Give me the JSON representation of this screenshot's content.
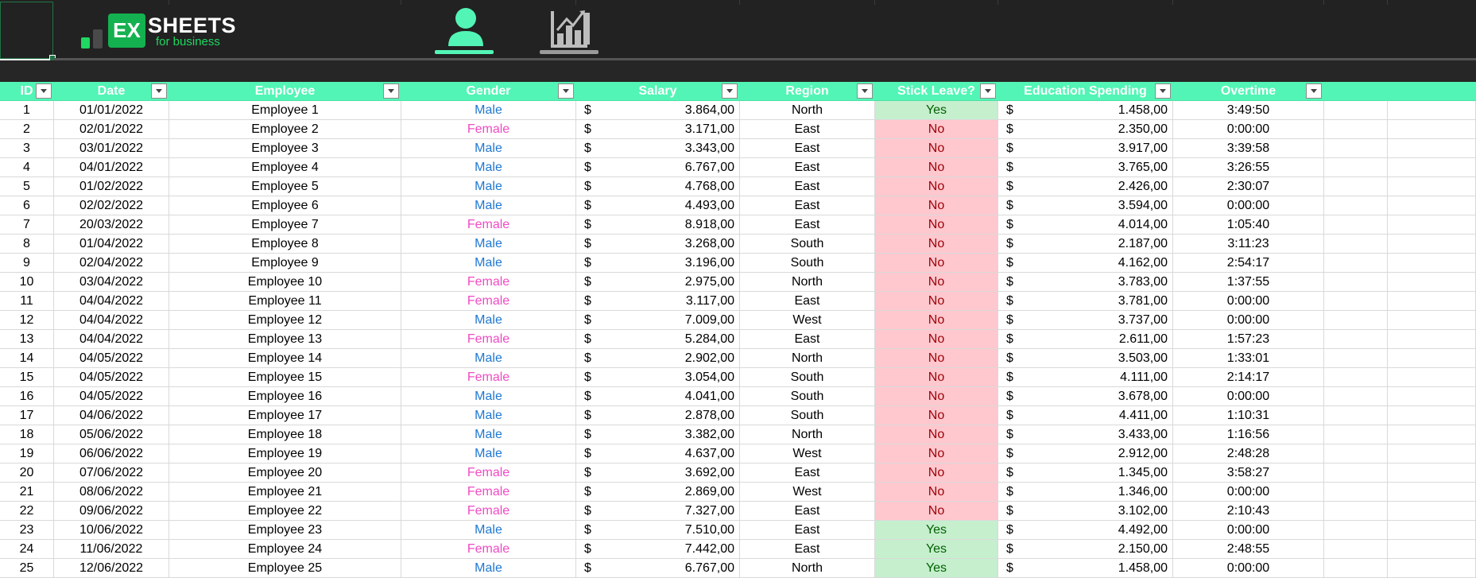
{
  "logo": {
    "badge": "EX",
    "title": "SHEETS",
    "subtitle": "for business"
  },
  "nav": [
    {
      "name": "employees",
      "icon": "person-icon",
      "active": true
    },
    {
      "name": "dashboard",
      "icon": "bar-chart-icon",
      "active": false
    }
  ],
  "colors": {
    "header": "#52f5b5",
    "male": "#1e78d2",
    "female": "#f04bc4",
    "yes_bg": "#c6efce",
    "no_bg": "#ffc7ce"
  },
  "table": {
    "currency": "$",
    "headers": [
      "ID",
      "Date",
      "Employee",
      "Gender",
      "Salary",
      "Region",
      "Stick Leave?",
      "Education Spending",
      "Overtime"
    ],
    "rows": [
      [
        "1",
        "01/01/2022",
        "Employee 1",
        "Male",
        "3.864,00",
        "North",
        "Yes",
        "1.458,00",
        "3:49:50"
      ],
      [
        "2",
        "02/01/2022",
        "Employee 2",
        "Female",
        "3.171,00",
        "East",
        "No",
        "2.350,00",
        "0:00:00"
      ],
      [
        "3",
        "03/01/2022",
        "Employee 3",
        "Male",
        "3.343,00",
        "East",
        "No",
        "3.917,00",
        "3:39:58"
      ],
      [
        "4",
        "04/01/2022",
        "Employee 4",
        "Male",
        "6.767,00",
        "East",
        "No",
        "3.765,00",
        "3:26:55"
      ],
      [
        "5",
        "01/02/2022",
        "Employee 5",
        "Male",
        "4.768,00",
        "East",
        "No",
        "2.426,00",
        "2:30:07"
      ],
      [
        "6",
        "02/02/2022",
        "Employee 6",
        "Male",
        "4.493,00",
        "East",
        "No",
        "3.594,00",
        "0:00:00"
      ],
      [
        "7",
        "20/03/2022",
        "Employee 7",
        "Female",
        "8.918,00",
        "East",
        "No",
        "4.014,00",
        "1:05:40"
      ],
      [
        "8",
        "01/04/2022",
        "Employee 8",
        "Male",
        "3.268,00",
        "South",
        "No",
        "2.187,00",
        "3:11:23"
      ],
      [
        "9",
        "02/04/2022",
        "Employee 9",
        "Male",
        "3.196,00",
        "South",
        "No",
        "4.162,00",
        "2:54:17"
      ],
      [
        "10",
        "03/04/2022",
        "Employee 10",
        "Female",
        "2.975,00",
        "North",
        "No",
        "3.783,00",
        "1:37:55"
      ],
      [
        "11",
        "04/04/2022",
        "Employee 11",
        "Female",
        "3.117,00",
        "East",
        "No",
        "3.781,00",
        "0:00:00"
      ],
      [
        "12",
        "04/04/2022",
        "Employee 12",
        "Male",
        "7.009,00",
        "West",
        "No",
        "3.737,00",
        "0:00:00"
      ],
      [
        "13",
        "04/04/2022",
        "Employee 13",
        "Female",
        "5.284,00",
        "East",
        "No",
        "2.611,00",
        "1:57:23"
      ],
      [
        "14",
        "04/05/2022",
        "Employee 14",
        "Male",
        "2.902,00",
        "North",
        "No",
        "3.503,00",
        "1:33:01"
      ],
      [
        "15",
        "04/05/2022",
        "Employee 15",
        "Female",
        "3.054,00",
        "South",
        "No",
        "4.111,00",
        "2:14:17"
      ],
      [
        "16",
        "04/05/2022",
        "Employee 16",
        "Male",
        "4.041,00",
        "South",
        "No",
        "3.678,00",
        "0:00:00"
      ],
      [
        "17",
        "04/06/2022",
        "Employee 17",
        "Male",
        "2.878,00",
        "South",
        "No",
        "4.411,00",
        "1:10:31"
      ],
      [
        "18",
        "05/06/2022",
        "Employee 18",
        "Male",
        "3.382,00",
        "North",
        "No",
        "3.433,00",
        "1:16:56"
      ],
      [
        "19",
        "06/06/2022",
        "Employee 19",
        "Male",
        "4.637,00",
        "West",
        "No",
        "2.912,00",
        "2:48:28"
      ],
      [
        "20",
        "07/06/2022",
        "Employee 20",
        "Female",
        "3.692,00",
        "East",
        "No",
        "1.345,00",
        "3:58:27"
      ],
      [
        "21",
        "08/06/2022",
        "Employee 21",
        "Female",
        "2.869,00",
        "West",
        "No",
        "1.346,00",
        "0:00:00"
      ],
      [
        "22",
        "09/06/2022",
        "Employee 22",
        "Female",
        "7.327,00",
        "East",
        "No",
        "3.102,00",
        "2:10:43"
      ],
      [
        "23",
        "10/06/2022",
        "Employee 23",
        "Male",
        "7.510,00",
        "East",
        "Yes",
        "4.492,00",
        "0:00:00"
      ],
      [
        "24",
        "11/06/2022",
        "Employee 24",
        "Female",
        "7.442,00",
        "East",
        "Yes",
        "2.150,00",
        "2:48:55"
      ],
      [
        "25",
        "12/06/2022",
        "Employee 25",
        "Male",
        "6.767,00",
        "North",
        "Yes",
        "1.458,00",
        "0:00:00"
      ]
    ]
  }
}
